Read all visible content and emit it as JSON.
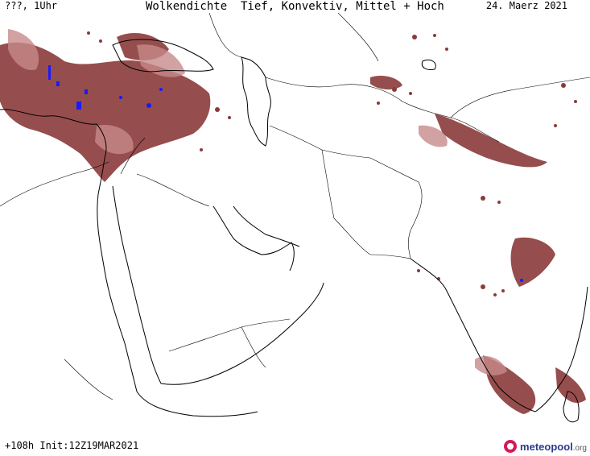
{
  "header": {
    "left_label": "???, 1Uhr",
    "title": "Wolkendichte  Tief, Konvektiv, Mittel + Hoch",
    "date": "24. Maerz 2021"
  },
  "footer": {
    "run_info": "+108h Init:12Z19MAR2021",
    "logo_text": "meteopool",
    "logo_suffix": ".org"
  },
  "colors": {
    "cloud_dense": "#8b3a3a",
    "cloud_light": "#c78a8a",
    "convective": "#1a1aff",
    "lines": "#000000",
    "logo_accent": "#d6185c"
  },
  "legend": {
    "icon": "meteopool-logo-icon"
  }
}
